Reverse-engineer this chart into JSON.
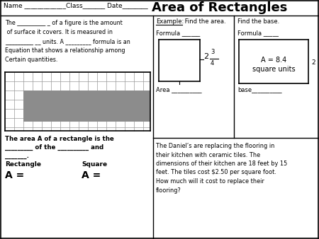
{
  "bg_color": "#ffffff",
  "title": "Area of Rectangles",
  "header_text": "Name _____________Class_______ Date________",
  "top_left_text": [
    "The __________ _ of a figure is the amount",
    " of surface it covers. It is measured in",
    "__________ __ units. A _________ formula is an",
    "Equation that shows a relationship among",
    "Certain quantities."
  ],
  "bottom_left1": "The area A of a rectangle is the",
  "bottom_left2": "_________ of the __________ and",
  "bottom_left3": "_______.",
  "rect_label": "Rectangle",
  "rect_formula": "A =",
  "sq_label": "Square",
  "sq_formula": "A =",
  "example_text": "Example:  Find the area.",
  "formula_left": "Formula ______",
  "area_text": "Area __________",
  "find_base": "Find the base.",
  "formula_right": "Formula _____",
  "box_line1": "A = 8.4",
  "box_line2": "square units",
  "base_text": "base__________",
  "side_label": "2",
  "problem": [
    "The Daniel’s are replacing the flooring in",
    "their kitchen with ceramic tiles. The",
    "dimensions of their kitchen are 18 feet by 15",
    "feet. The tiles cost $2.50 per square foot.",
    "How much will it cost to replace their",
    "flooring?"
  ],
  "frac_whole": "2",
  "frac_num": "3",
  "frac_den": "4",
  "grid_color": "#999999",
  "gray_color": "#8c8c8c",
  "blue_border": "#3355aa"
}
